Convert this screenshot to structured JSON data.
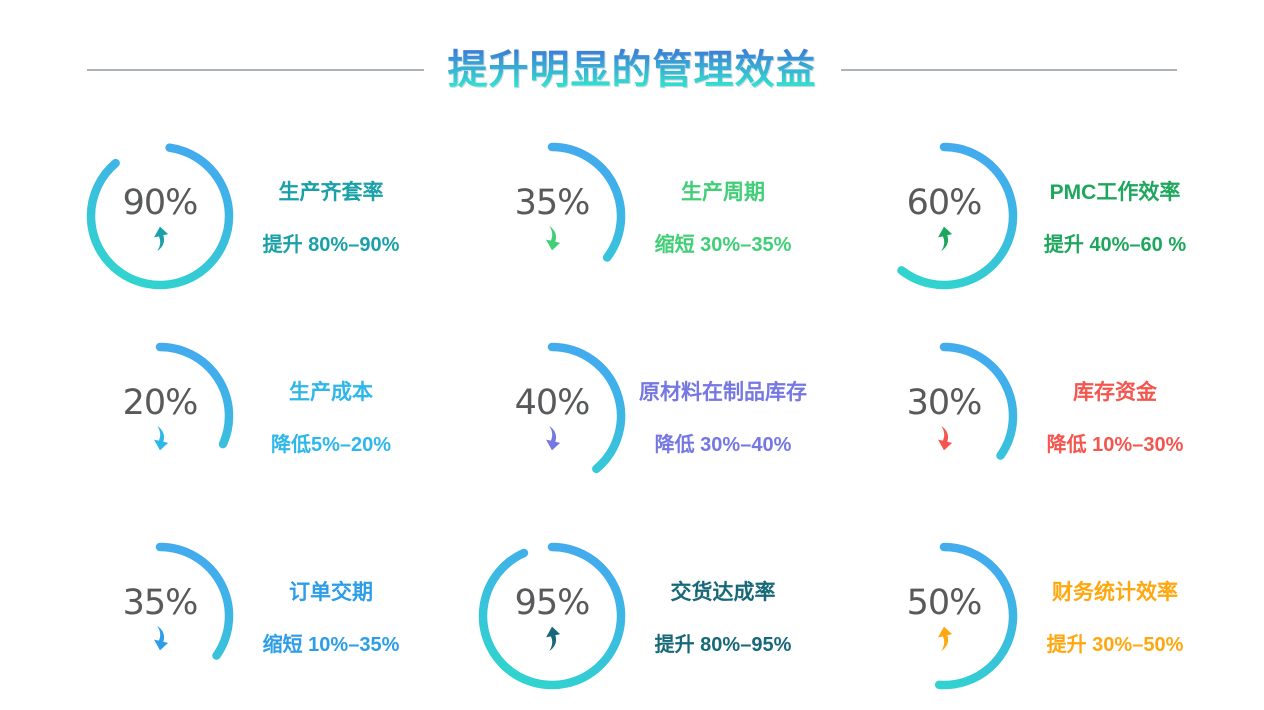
{
  "header": {
    "title": "提升明显的管理效益"
  },
  "theme": {
    "title_gradient_top": "#3b7fd8",
    "title_gradient_bottom": "#34e4cf",
    "divider_color": "#97a1a7",
    "percent_color": "#58595a",
    "arc_gradient_start": "#44a8f0",
    "arc_gradient_end": "#2fd7cb"
  },
  "chart_data": {
    "type": "gauge-grid",
    "columns": 3,
    "units": [
      {
        "label": "生产齐套率",
        "percent": 90,
        "percent_text": "90%",
        "desc": "提升 80%–90%",
        "direction": "up",
        "color": "#1aa0a8",
        "arc_start_deg": 8,
        "arc_sweep_deg": 312
      },
      {
        "label": "生产周期",
        "percent": 35,
        "percent_text": "35%",
        "desc": "缩短 30%–35%",
        "direction": "down",
        "color": "#40ce77",
        "arc_start_deg": 0,
        "arc_sweep_deg": 127
      },
      {
        "label": "PMC工作效率",
        "percent": 60,
        "percent_text": "60%",
        "desc": "提升 40%–60 %",
        "direction": "up",
        "color": "#1ea75c",
        "arc_start_deg": 0,
        "arc_sweep_deg": 218
      },
      {
        "label": "生产成本",
        "percent": 20,
        "percent_text": "20%",
        "desc": "降低5%–20%",
        "direction": "down",
        "color": "#2eb7ea",
        "arc_start_deg": 0,
        "arc_sweep_deg": 114
      },
      {
        "label": "原材料在制品库存",
        "percent": 40,
        "percent_text": "40%",
        "desc": "降低 30%–40%",
        "direction": "down",
        "color": "#7577e2",
        "arc_start_deg": 0,
        "arc_sweep_deg": 140
      },
      {
        "label": "库存资金",
        "percent": 30,
        "percent_text": "30%",
        "desc": "降低 10%–30%",
        "direction": "down",
        "color": "#f4564e",
        "arc_start_deg": 0,
        "arc_sweep_deg": 125
      },
      {
        "label": "订单交期",
        "percent": 35,
        "percent_text": "35%",
        "desc": "缩短 10%–35%",
        "direction": "down",
        "color": "#2d9de8",
        "arc_start_deg": 0,
        "arc_sweep_deg": 125
      },
      {
        "label": "交货达成率",
        "percent": 95,
        "percent_text": "95%",
        "desc": "提升 80%–95%",
        "direction": "up",
        "color": "#17697a",
        "arc_start_deg": 0,
        "arc_sweep_deg": 336
      },
      {
        "label": "财务统计效率",
        "percent": 50,
        "percent_text": "50%",
        "desc": "提升 30%–50%",
        "direction": "up",
        "color": "#ffa70f",
        "arc_start_deg": 0,
        "arc_sweep_deg": 184
      }
    ]
  }
}
